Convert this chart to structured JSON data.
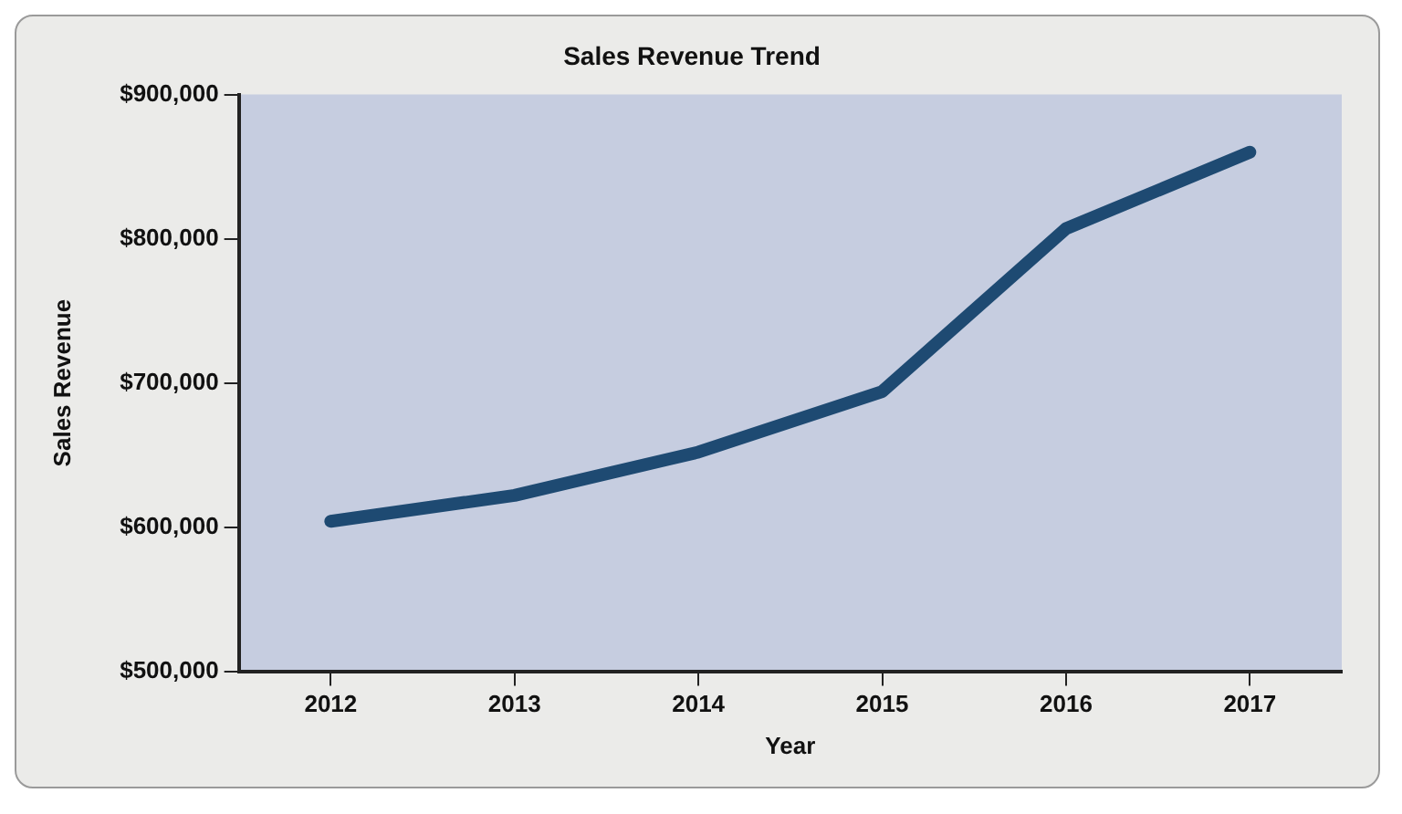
{
  "chart_data": {
    "type": "line",
    "title": "Sales Revenue Trend",
    "xlabel": "Year",
    "ylabel": "Sales Revenue",
    "categories": [
      "2012",
      "2013",
      "2014",
      "2015",
      "2016",
      "2017"
    ],
    "series": [
      {
        "color": "#1e4a72",
        "values": [
          604000,
          622000,
          652000,
          694000,
          807000,
          860000
        ]
      }
    ],
    "ylim": [
      500000,
      900000
    ],
    "yticks": [
      {
        "value": 500000,
        "label": "$500,000"
      },
      {
        "value": 600000,
        "label": "$600,000"
      },
      {
        "value": 700000,
        "label": "$700,000"
      },
      {
        "value": 800000,
        "label": "$800,000"
      },
      {
        "value": 900000,
        "label": "$900,000"
      }
    ],
    "grid": false,
    "legend": false,
    "marker": "none",
    "line_style": "solid"
  }
}
